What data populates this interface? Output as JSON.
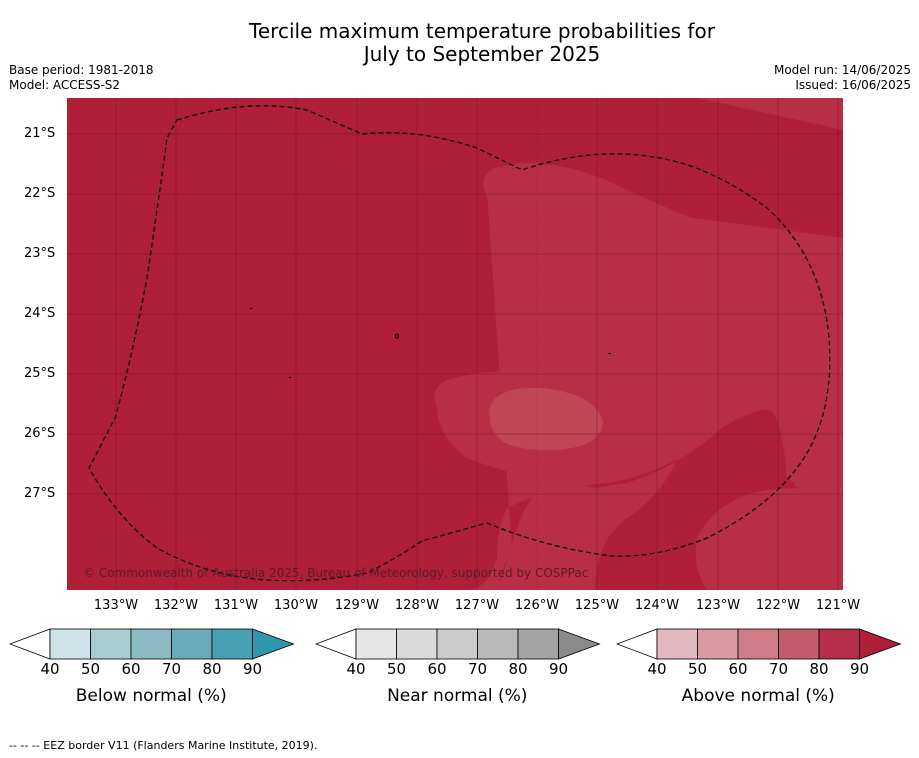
{
  "title_line1": "Tercile maximum temperature probabilities for",
  "title_line2": "July to September 2025",
  "base_period": "Base period: 1981-2018",
  "model": "Model: ACCESS-S2",
  "model_run": "Model run: 14/06/2025",
  "issued": "Issued: 16/06/2025",
  "copyright": "© Commonwealth of Australia 2025, Bureau of Meteorology, supported by COSPPac",
  "lat_labels": [
    "21°S",
    "22°S",
    "23°S",
    "24°S",
    "25°S",
    "26°S",
    "27°S"
  ],
  "lon_labels": [
    "133°W",
    "132°W",
    "131°W",
    "130°W",
    "129°W",
    "128°W",
    "127°W",
    "126°W",
    "125°W",
    "124°W",
    "123°W",
    "122°W",
    "121°W"
  ],
  "colorbars": [
    {
      "name": "Below normal (%)",
      "ticks": [
        "40",
        "50",
        "60",
        "70",
        "80",
        "90"
      ],
      "colors": [
        "#cde3e8",
        "#a9cbd2",
        "#8bb9c4",
        "#6aa9b7",
        "#479fb1",
        "#2e97ae"
      ]
    },
    {
      "name": "Near normal (%)",
      "ticks": [
        "40",
        "50",
        "60",
        "70",
        "80",
        "90"
      ],
      "colors": [
        "#e6e6e6",
        "#d9d9d9",
        "#cbcbcb",
        "#b9b9b9",
        "#a3a3a3",
        "#8a8a8a"
      ]
    },
    {
      "name": "Above normal (%)",
      "ticks": [
        "40",
        "50",
        "60",
        "70",
        "80",
        "90"
      ],
      "colors": [
        "#e2b9c1",
        "#d99aa4",
        "#d07c88",
        "#c55c6c",
        "#b52e48",
        "#af1f38"
      ]
    }
  ],
  "footnote": "--  --  -- EEZ border V11 (Flanders Marine Institute, 2019).",
  "colors": {
    "above_80_90": "#af1f38",
    "above_70_80": "#b82f45",
    "above_60_70": "#c04555"
  }
}
